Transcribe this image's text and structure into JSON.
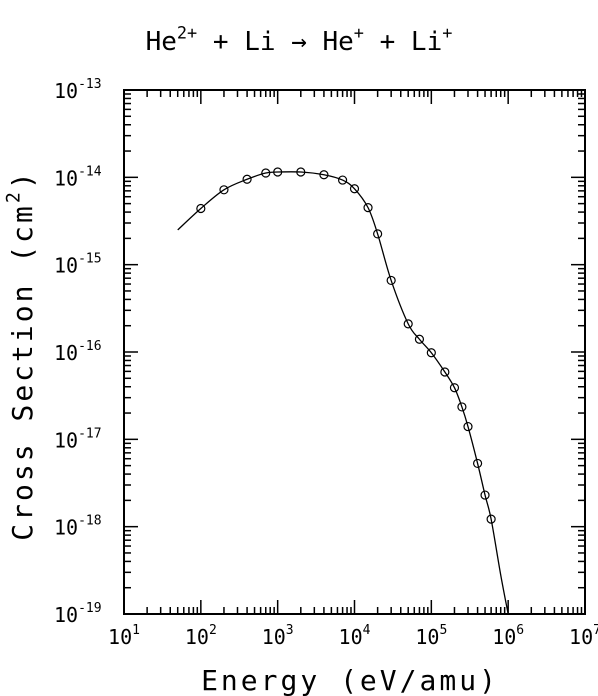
{
  "chart_data": {
    "type": "scatter",
    "title": [
      {
        "text": "He"
      },
      {
        "text": "2+",
        "sup": true
      },
      {
        "text": " + Li → He"
      },
      {
        "text": "+",
        "sup": true
      },
      {
        "text": " + Li"
      },
      {
        "text": "+",
        "sup": true
      }
    ],
    "xlabel": [
      {
        "text": "Energy (eV/amu)"
      }
    ],
    "ylabel": [
      {
        "text": "Cross Section (cm"
      },
      {
        "text": "2",
        "sup": true
      },
      {
        "text": ")"
      }
    ],
    "xscale": "log",
    "yscale": "log",
    "minor_ticks": true,
    "xlim": [
      10,
      10000000
    ],
    "ylim": [
      1e-19,
      1e-13
    ],
    "xticks": [
      {
        "value": 10,
        "label": "10",
        "exponent": "1"
      },
      {
        "value": 100,
        "label": "10",
        "exponent": "2"
      },
      {
        "value": 1000,
        "label": "10",
        "exponent": "3"
      },
      {
        "value": 10000,
        "label": "10",
        "exponent": "4"
      },
      {
        "value": 100000,
        "label": "10",
        "exponent": "5"
      },
      {
        "value": 1000000,
        "label": "10",
        "exponent": "6"
      },
      {
        "value": 10000000,
        "label": "10",
        "exponent": "7"
      }
    ],
    "yticks": [
      {
        "value": 1e-19,
        "label": "10",
        "exponent": "-19"
      },
      {
        "value": 1e-18,
        "label": "10",
        "exponent": "-18"
      },
      {
        "value": 1e-17,
        "label": "10",
        "exponent": "-17"
      },
      {
        "value": 1e-16,
        "label": "10",
        "exponent": "-16"
      },
      {
        "value": 1e-15,
        "label": "10",
        "exponent": "-15"
      },
      {
        "value": 1e-14,
        "label": "10",
        "exponent": "-14"
      },
      {
        "value": 1e-13,
        "label": "10",
        "exponent": "-13"
      }
    ],
    "series": [
      {
        "mark": "circle",
        "color": "#000000",
        "x": [
          100,
          200,
          400,
          700,
          1000,
          2000,
          4000,
          7000,
          10000,
          15000,
          20000,
          30000,
          50000,
          70000,
          100000,
          150000,
          200000,
          250000,
          300000,
          400000,
          500000,
          600000
        ],
        "values": [
          4.4e-15,
          7.2e-15,
          9.5e-15,
          1.12e-14,
          1.15e-14,
          1.15e-14,
          1.07e-14,
          9.3e-15,
          7.4e-15,
          4.5e-15,
          2.25e-15,
          6.6e-16,
          2.1e-16,
          1.4e-16,
          9.8e-17,
          5.9e-17,
          3.9e-17,
          2.35e-17,
          1.4e-17,
          5.3e-18,
          2.3e-18,
          1.22e-18
        ]
      },
      {
        "mark": "line",
        "color": "#000000",
        "x": [
          50,
          100,
          200,
          400,
          700,
          1000,
          2000,
          4000,
          7000,
          10000,
          15000,
          20000,
          30000,
          50000,
          70000,
          100000,
          150000,
          200000,
          250000,
          300000,
          400000,
          500000,
          600000,
          800000,
          1000000
        ],
        "values": [
          2.5e-15,
          4.4e-15,
          7.2e-15,
          9.5e-15,
          1.12e-14,
          1.15e-14,
          1.15e-14,
          1.07e-14,
          9.3e-15,
          7.4e-15,
          4.5e-15,
          2.25e-15,
          6.6e-16,
          2.1e-16,
          1.4e-16,
          9.8e-17,
          5.9e-17,
          3.9e-17,
          2.35e-17,
          1.4e-17,
          5.3e-18,
          2.3e-18,
          1.22e-18,
          2.8e-19,
          1e-19
        ]
      }
    ]
  }
}
